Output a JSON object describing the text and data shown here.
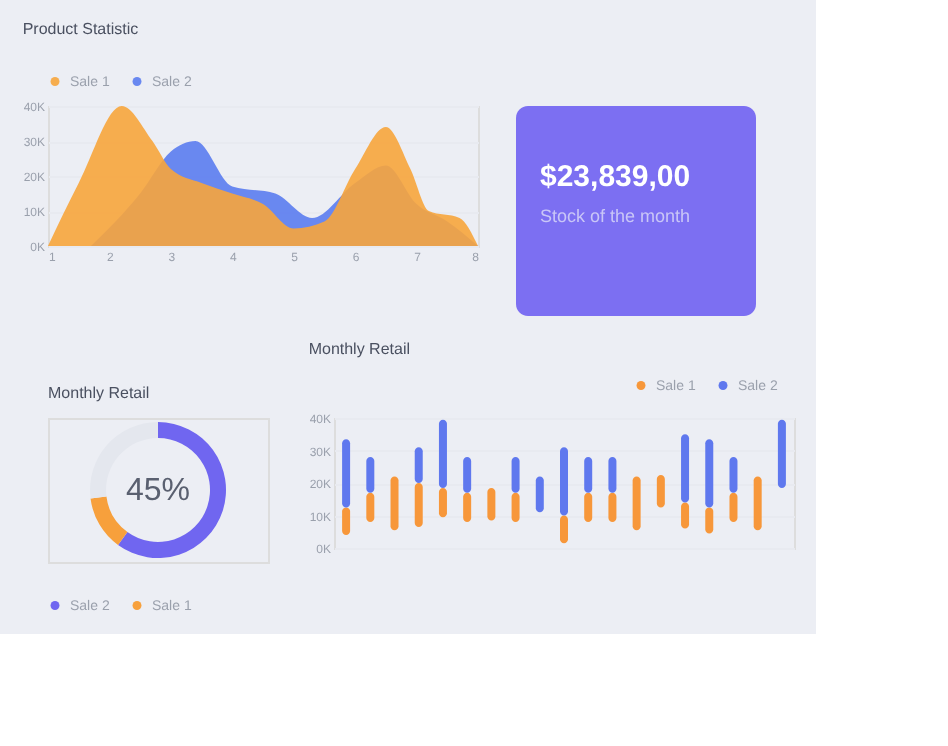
{
  "chart_data": [
    {
      "type": "area",
      "title": "Product Statistic",
      "legend": "top left",
      "grid": "y",
      "xlim": [
        1,
        8
      ],
      "xticks": [
        1,
        2,
        3,
        4,
        5,
        6,
        7,
        8
      ],
      "ylim": [
        0,
        40
      ],
      "yticks": [
        {
          "value": 0,
          "label": "0K"
        },
        {
          "value": 10,
          "label": "10K"
        },
        {
          "value": 20,
          "label": "20K"
        },
        {
          "value": 30,
          "label": "30K"
        },
        {
          "value": 40,
          "label": "40K"
        }
      ],
      "series": [
        {
          "name": "Sale 1",
          "color": "#f7a53c",
          "x": [
            1,
            1.5,
            2.2,
            2.7,
            3,
            3.5,
            4,
            4.5,
            5,
            5.5,
            6,
            6.5,
            6.9,
            7.2,
            7.7,
            8
          ],
          "values": [
            0,
            18,
            40,
            30,
            22,
            18,
            15,
            12,
            5,
            7,
            22,
            34,
            22,
            10,
            8,
            0
          ]
        },
        {
          "name": "Sale 2",
          "color": "#5b7cf0",
          "x": [
            1.7,
            2.5,
            3,
            3.4,
            4,
            4.7,
            5.3,
            6,
            6.5,
            7,
            7.5,
            8
          ],
          "values": [
            0,
            15,
            27,
            30,
            17,
            15,
            8,
            18,
            23,
            12,
            7,
            0
          ]
        }
      ]
    },
    {
      "type": "other",
      "title": "$23,839,00",
      "subtitle": "Stock of the month",
      "color": "#7c6ff2"
    },
    {
      "type": "donut",
      "title": "Monthly Retail",
      "legend": "bottom",
      "categories": [
        "Sale 2",
        "Sale 1",
        null
      ],
      "values": [
        60,
        13,
        27
      ],
      "colors": [
        "#7066f0",
        "#f7a03c",
        "#e4e7ee"
      ],
      "annotations": [
        "45%"
      ]
    },
    {
      "type": "bar",
      "title": "Monthly Retail",
      "legend": "top right",
      "grid": "y",
      "ylim": [
        0,
        40
      ],
      "yticks": [
        {
          "value": 0,
          "label": "0K"
        },
        {
          "value": 10,
          "label": "10K"
        },
        {
          "value": 20,
          "label": "20K"
        },
        {
          "value": 30,
          "label": "30K"
        },
        {
          "value": 40,
          "label": "40K"
        }
      ],
      "categories": [
        null,
        null,
        null,
        null,
        null,
        null,
        null,
        null,
        null,
        null,
        null,
        null,
        null,
        null,
        null,
        null,
        null,
        null,
        null
      ],
      "series": [
        {
          "name": "Sale 1",
          "color": "#f7973a",
          "base": [
            4,
            8,
            5.5,
            6.5,
            9.5,
            8,
            8.5,
            8,
            null,
            1.5,
            8,
            8,
            5.5,
            12.5,
            6,
            4.5,
            8,
            5.5,
            null
          ],
          "values": [
            8.5,
            9,
            16.5,
            13.5,
            9,
            9,
            10,
            9,
            null,
            8.5,
            9,
            9,
            16.5,
            10,
            8,
            8,
            9,
            16.5,
            null
          ]
        },
        {
          "name": "Sale 2",
          "color": "#5f78ee",
          "base": [
            12.5,
            17,
            null,
            20,
            18.5,
            17,
            null,
            17,
            11,
            10,
            17,
            17,
            null,
            null,
            14,
            12.5,
            17,
            null,
            18.5
          ],
          "values": [
            21,
            11,
            null,
            11,
            21,
            11,
            null,
            11,
            11,
            21,
            11,
            11,
            null,
            null,
            21,
            21,
            11,
            null,
            21
          ]
        }
      ]
    }
  ]
}
